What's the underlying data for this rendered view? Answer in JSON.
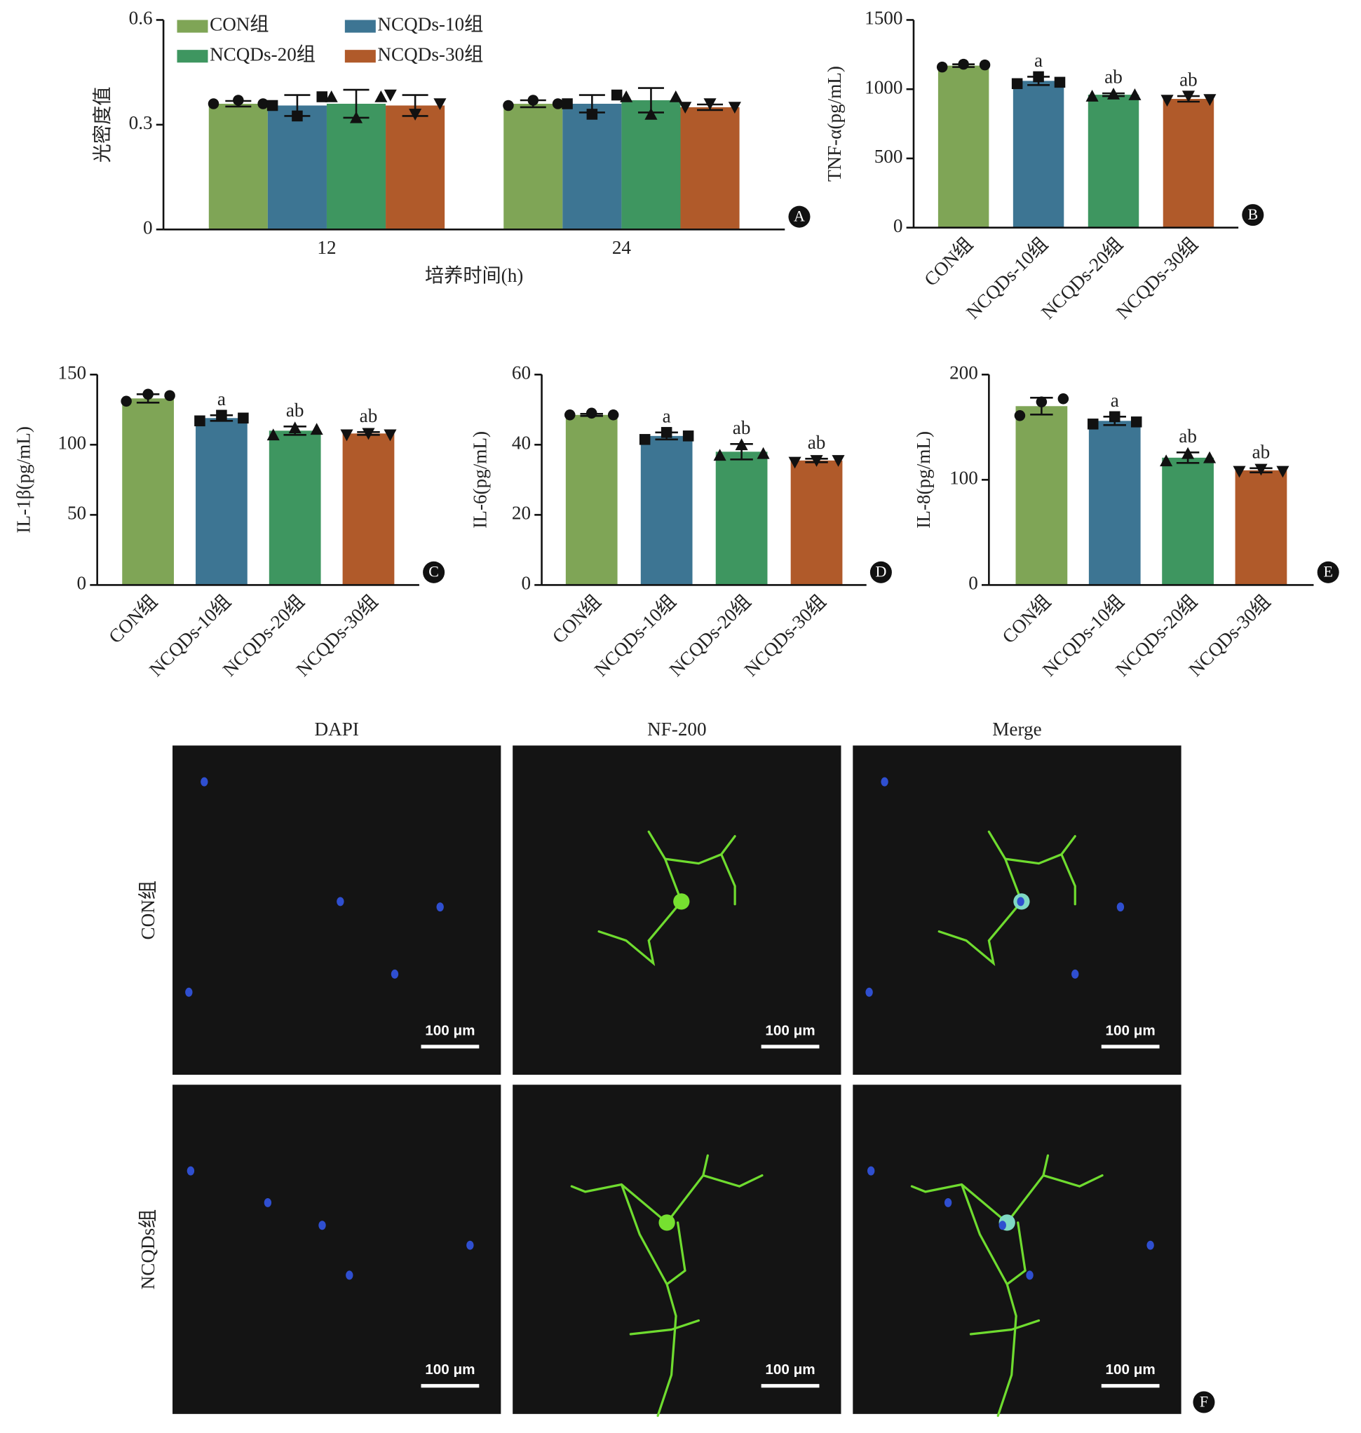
{
  "chart_data": [
    {
      "type": "bar",
      "panel": "A",
      "ylabel": "光密度值",
      "xlabel": "培养时间(h)",
      "categories": [
        "12",
        "24"
      ],
      "ylim": [
        0,
        0.6
      ],
      "yticks": [
        0,
        0.3,
        0.6
      ],
      "series": [
        {
          "name": "CON组",
          "color": "#7fa556",
          "marker": "circle",
          "values": [
            0.36,
            0.36
          ],
          "errors": [
            0.008,
            0.01
          ],
          "points": [
            [
              0.36,
              0.37,
              0.36
            ],
            [
              0.355,
              0.37,
              0.36
            ]
          ]
        },
        {
          "name": "NCQDs-10组",
          "color": "#3d7593",
          "marker": "square",
          "values": [
            0.355,
            0.36
          ],
          "errors": [
            0.03,
            0.025
          ],
          "points": [
            [
              0.355,
              0.325,
              0.38
            ],
            [
              0.36,
              0.33,
              0.385
            ]
          ]
        },
        {
          "name": "NCQDs-20组",
          "color": "#3e9660",
          "marker": "triangle-up",
          "values": [
            0.36,
            0.37
          ],
          "errors": [
            0.04,
            0.035
          ],
          "points": [
            [
              0.38,
              0.32,
              0.38
            ],
            [
              0.38,
              0.33,
              0.38
            ]
          ]
        },
        {
          "name": "NCQDs-30组",
          "color": "#b05a2a",
          "marker": "triangle-down",
          "values": [
            0.355,
            0.35
          ],
          "errors": [
            0.03,
            0.008
          ],
          "points": [
            [
              0.385,
              0.33,
              0.36
            ],
            [
              0.35,
              0.36,
              0.35
            ]
          ]
        }
      ]
    },
    {
      "type": "bar",
      "panel": "B",
      "ylabel": "TNF-α(pg/mL)",
      "categories": [
        "CON组",
        "NCQDs-10组",
        "NCQDs-20组",
        "NCQDs-30组"
      ],
      "ylim": [
        0,
        1500
      ],
      "yticks": [
        0,
        500,
        1000,
        1500
      ],
      "colors": [
        "#7fa556",
        "#3d7593",
        "#3e9660",
        "#b05a2a"
      ],
      "markers": [
        "circle",
        "square",
        "triangle-up",
        "triangle-down"
      ],
      "values": [
        1170,
        1060,
        960,
        930
      ],
      "errors": [
        10,
        30,
        10,
        20
      ],
      "points": [
        [
          1160,
          1180,
          1175
        ],
        [
          1040,
          1090,
          1050
        ],
        [
          950,
          965,
          960
        ],
        [
          920,
          950,
          925
        ]
      ],
      "annotations": [
        {
          "category": "NCQDs-10组",
          "text": "a"
        },
        {
          "category": "NCQDs-20组",
          "text": "ab"
        },
        {
          "category": "NCQDs-30组",
          "text": "ab"
        }
      ]
    },
    {
      "type": "bar",
      "panel": "C",
      "ylabel": "IL-1β(pg/mL)",
      "categories": [
        "CON组",
        "NCQDs-10组",
        "NCQDs-20组",
        "NCQDs-30组"
      ],
      "ylim": [
        0,
        150
      ],
      "yticks": [
        0,
        50,
        100,
        150
      ],
      "colors": [
        "#7fa556",
        "#3d7593",
        "#3e9660",
        "#b05a2a"
      ],
      "markers": [
        "circle",
        "square",
        "triangle-up",
        "triangle-down"
      ],
      "values": [
        133,
        119,
        110,
        108
      ],
      "errors": [
        3,
        2,
        3,
        1
      ],
      "points": [
        [
          131,
          136,
          135
        ],
        [
          117,
          121,
          119
        ],
        [
          107,
          112,
          111
        ],
        [
          107,
          108,
          107
        ]
      ],
      "annotations": [
        {
          "category": "NCQDs-10组",
          "text": "a"
        },
        {
          "category": "NCQDs-20组",
          "text": "ab"
        },
        {
          "category": "NCQDs-30组",
          "text": "ab"
        }
      ]
    },
    {
      "type": "bar",
      "panel": "D",
      "ylabel": "IL-6(pg/mL)",
      "categories": [
        "CON组",
        "NCQDs-10组",
        "NCQDs-20组",
        "NCQDs-30组"
      ],
      "ylim": [
        0,
        60
      ],
      "yticks": [
        0,
        20,
        40,
        60
      ],
      "colors": [
        "#7fa556",
        "#3d7593",
        "#3e9660",
        "#b05a2a"
      ],
      "markers": [
        "circle",
        "square",
        "triangle-up",
        "triangle-down"
      ],
      "values": [
        48.5,
        42.5,
        38,
        35.5
      ],
      "errors": [
        0.3,
        1,
        2.2,
        0.5
      ],
      "points": [
        [
          48.5,
          49,
          48.5
        ],
        [
          41.5,
          43.5,
          42.5
        ],
        [
          37,
          40,
          37.5
        ],
        [
          35,
          35.5,
          35.5
        ]
      ],
      "annotations": [
        {
          "category": "NCQDs-10组",
          "text": "a"
        },
        {
          "category": "NCQDs-20组",
          "text": "ab"
        },
        {
          "category": "NCQDs-30组",
          "text": "ab"
        }
      ]
    },
    {
      "type": "bar",
      "panel": "E",
      "ylabel": "IL-8(pg/mL)",
      "categories": [
        "CON组",
        "NCQDs-10组",
        "NCQDs-20组",
        "NCQDs-30组"
      ],
      "ylim": [
        0,
        200
      ],
      "yticks": [
        0,
        100,
        200
      ],
      "colors": [
        "#7fa556",
        "#3d7593",
        "#3e9660",
        "#b05a2a"
      ],
      "markers": [
        "circle",
        "square",
        "triangle-up",
        "triangle-down"
      ],
      "values": [
        170,
        156,
        121,
        109
      ],
      "errors": [
        8,
        4,
        5,
        2
      ],
      "points": [
        [
          161,
          174,
          177
        ],
        [
          153,
          160,
          155
        ],
        [
          118,
          125,
          121
        ],
        [
          108,
          110,
          108
        ]
      ],
      "annotations": [
        {
          "category": "NCQDs-10组",
          "text": "a"
        },
        {
          "category": "NCQDs-20组",
          "text": "ab"
        },
        {
          "category": "NCQDs-30组",
          "text": "ab"
        }
      ]
    }
  ],
  "panel_f": {
    "label": "F",
    "columns": [
      "DAPI",
      "NF-200",
      "Merge"
    ],
    "rows": [
      "CON组",
      "NCQDs组"
    ],
    "scale_bar": "100 μm"
  }
}
